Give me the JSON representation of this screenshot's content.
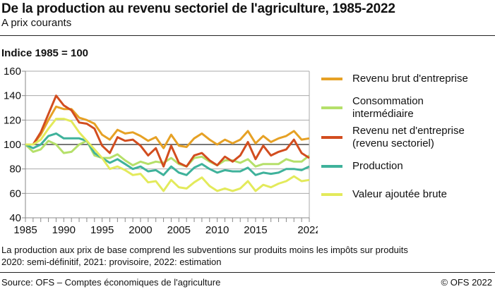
{
  "header": {
    "title": "De la production au revenu sectoriel de l'agriculture, 1985-2022",
    "subtitle": "A prix courants"
  },
  "chart_data": {
    "type": "line",
    "ylabel": "Indice 1985 = 100",
    "ylim": [
      40,
      160
    ],
    "yticks": [
      40,
      60,
      80,
      100,
      120,
      140,
      160
    ],
    "xlim": [
      1985,
      2022
    ],
    "xtick_labels": [
      "1985",
      "1990",
      "1995",
      "2000",
      "2005",
      "2010",
      "2015",
      "2022"
    ],
    "xticks": [
      1985,
      1990,
      1995,
      2000,
      2005,
      2010,
      2015,
      2022
    ],
    "grid": true,
    "legend": "right",
    "x": [
      1985,
      1986,
      1987,
      1988,
      1989,
      1990,
      1991,
      1992,
      1993,
      1994,
      1995,
      1996,
      1997,
      1998,
      1999,
      2000,
      2001,
      2002,
      2003,
      2004,
      2005,
      2006,
      2007,
      2008,
      2009,
      2010,
      2011,
      2012,
      2013,
      2014,
      2015,
      2016,
      2017,
      2018,
      2019,
      2020,
      2021,
      2022
    ],
    "series": [
      {
        "name": "Revenu brut d'entreprise",
        "color": "#e6a125",
        "values": [
          100,
          100,
          108,
          120,
          131,
          129,
          129,
          122,
          120,
          117,
          108,
          104,
          112,
          109,
          110,
          107,
          103,
          106,
          97,
          108,
          99,
          98,
          105,
          109,
          104,
          100,
          104,
          101,
          104,
          111,
          101,
          107,
          102,
          105,
          107,
          111,
          104,
          105
        ]
      },
      {
        "name": "Consommation intermédiaire",
        "color": "#b5e06a",
        "values": [
          100,
          94,
          96,
          103,
          100,
          93,
          94,
          100,
          103,
          91,
          89,
          89,
          92,
          87,
          83,
          86,
          84,
          86,
          85,
          89,
          84,
          82,
          89,
          90,
          86,
          83,
          87,
          87,
          85,
          88,
          82,
          84,
          84,
          84,
          88,
          86,
          86,
          91
        ]
      },
      {
        "name": "Revenu net d'entreprise (revenu sectoriel)",
        "color": "#d24d1f",
        "values": [
          100,
          100,
          110,
          125,
          140,
          132,
          128,
          118,
          117,
          113,
          99,
          93,
          106,
          103,
          104,
          99,
          91,
          97,
          82,
          99,
          85,
          82,
          91,
          93,
          87,
          83,
          90,
          86,
          91,
          102,
          88,
          99,
          91,
          94,
          96,
          104,
          93,
          89
        ]
      },
      {
        "name": "Production",
        "color": "#3fb29b",
        "values": [
          100,
          97,
          100,
          107,
          109,
          105,
          105,
          105,
          103,
          93,
          89,
          85,
          88,
          84,
          80,
          82,
          78,
          79,
          75,
          82,
          77,
          75,
          81,
          84,
          80,
          77,
          79,
          78,
          78,
          81,
          75,
          77,
          76,
          77,
          80,
          80,
          79,
          82
        ]
      },
      {
        "name": "Valeur ajoutée brute",
        "color": "#e3ea5b",
        "values": [
          100,
          100,
          104,
          113,
          121,
          121,
          119,
          110,
          103,
          96,
          89,
          80,
          82,
          79,
          75,
          76,
          69,
          70,
          62,
          71,
          65,
          64,
          69,
          73,
          66,
          62,
          64,
          62,
          64,
          70,
          62,
          67,
          65,
          68,
          70,
          74,
          70,
          71
        ]
      }
    ],
    "legend_labels": [
      [
        "Revenu brut d'entreprise"
      ],
      [
        "Consommation",
        "intermédiaire"
      ],
      [
        "Revenu net d'entreprise",
        "(revenu sectoriel)"
      ],
      [
        "Production"
      ],
      [
        "Valeur ajoutée brute"
      ]
    ]
  },
  "notes": [
    "La production aux prix de base comprend les subventions sur produits moins les impôts sur produits",
    "2020: semi-définitif, 2021: provisoire, 2022: estimation"
  ],
  "footer": {
    "source": "Source: OFS – Comptes économiques de l'agriculture",
    "copyright": "© OFS 2022"
  }
}
